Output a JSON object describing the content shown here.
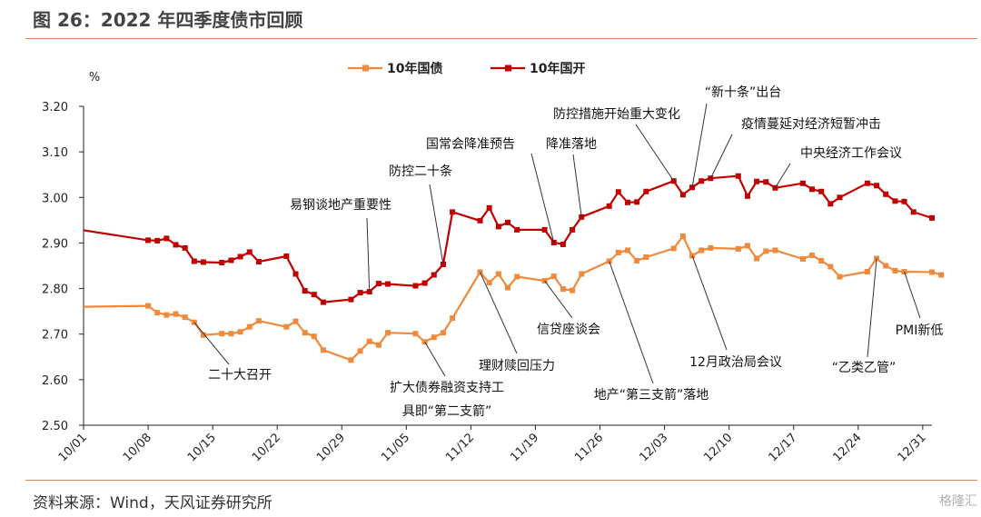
{
  "header": {
    "title": "图 26：2022 年四季度债市回顾"
  },
  "footer": {
    "source": "资料来源：Wind，天风证券研究所",
    "brand": "格隆汇"
  },
  "colors": {
    "gov": "#ef8a3d",
    "cdb": "#c00000",
    "accent_line": "#d08a5c"
  },
  "chart_data": {
    "type": "line",
    "unit": "%",
    "x_ticks": [
      "10/01",
      "10/08",
      "10/15",
      "10/22",
      "10/29",
      "11/05",
      "11/12",
      "11/19",
      "11/26",
      "12/03",
      "12/10",
      "12/17",
      "12/24",
      "12/31"
    ],
    "ylim": [
      2.5,
      3.2
    ],
    "y_ticks": [
      "2.50",
      "2.60",
      "2.70",
      "2.80",
      "2.90",
      "3.00",
      "3.10",
      "3.20"
    ],
    "grid": false,
    "legend_position": "top",
    "series": [
      {
        "name": "10年国债",
        "color": "#ef8a3d",
        "points": [
          [
            0,
            2.76
          ],
          [
            7,
            2.762
          ],
          [
            8,
            2.747
          ],
          [
            9,
            2.742
          ],
          [
            10,
            2.744
          ],
          [
            11,
            2.737
          ],
          [
            12,
            2.726
          ],
          [
            13,
            2.698
          ],
          [
            15,
            2.701
          ],
          [
            16,
            2.701
          ],
          [
            17,
            2.705
          ],
          [
            18,
            2.716
          ],
          [
            19,
            2.729
          ],
          [
            22,
            2.716
          ],
          [
            23,
            2.728
          ],
          [
            24,
            2.703
          ],
          [
            25,
            2.695
          ],
          [
            26,
            2.665
          ],
          [
            29,
            2.643
          ],
          [
            30,
            2.663
          ],
          [
            31,
            2.684
          ],
          [
            32,
            2.676
          ],
          [
            33,
            2.703
          ],
          [
            36,
            2.701
          ],
          [
            37,
            2.683
          ],
          [
            38,
            2.693
          ],
          [
            39,
            2.703
          ],
          [
            40,
            2.735
          ],
          [
            43,
            2.836
          ],
          [
            44,
            2.813
          ],
          [
            45,
            2.832
          ],
          [
            46,
            2.802
          ],
          [
            47,
            2.826
          ],
          [
            50,
            2.817
          ],
          [
            51,
            2.827
          ],
          [
            52,
            2.799
          ],
          [
            53,
            2.796
          ],
          [
            54,
            2.832
          ],
          [
            57,
            2.86
          ],
          [
            58,
            2.879
          ],
          [
            59,
            2.884
          ],
          [
            60,
            2.861
          ],
          [
            61,
            2.869
          ],
          [
            64,
            2.888
          ],
          [
            65,
            2.915
          ],
          [
            66,
            2.872
          ],
          [
            67,
            2.884
          ],
          [
            68,
            2.889
          ],
          [
            71,
            2.887
          ],
          [
            72,
            2.894
          ],
          [
            73,
            2.866
          ],
          [
            74,
            2.882
          ],
          [
            75,
            2.884
          ],
          [
            78,
            2.865
          ],
          [
            79,
            2.873
          ],
          [
            80,
            2.861
          ],
          [
            81,
            2.848
          ],
          [
            82,
            2.826
          ],
          [
            85,
            2.837
          ],
          [
            86,
            2.866
          ],
          [
            87,
            2.85
          ],
          [
            88,
            2.839
          ],
          [
            89,
            2.837
          ],
          [
            92,
            2.836
          ],
          [
            93,
            2.83
          ]
        ]
      },
      {
        "name": "10年国开",
        "color": "#c00000",
        "points": [
          [
            0,
            2.928
          ],
          [
            7,
            2.906
          ],
          [
            8,
            2.905
          ],
          [
            9,
            2.91
          ],
          [
            10,
            2.896
          ],
          [
            11,
            2.889
          ],
          [
            12,
            2.86
          ],
          [
            13,
            2.858
          ],
          [
            15,
            2.857
          ],
          [
            16,
            2.862
          ],
          [
            17,
            2.87
          ],
          [
            18,
            2.88
          ],
          [
            19,
            2.859
          ],
          [
            22,
            2.871
          ],
          [
            23,
            2.832
          ],
          [
            24,
            2.795
          ],
          [
            25,
            2.787
          ],
          [
            26,
            2.77
          ],
          [
            29,
            2.776
          ],
          [
            30,
            2.791
          ],
          [
            31,
            2.793
          ],
          [
            32,
            2.811
          ],
          [
            33,
            2.81
          ],
          [
            36,
            2.806
          ],
          [
            37,
            2.812
          ],
          [
            38,
            2.83
          ],
          [
            39,
            2.853
          ],
          [
            40,
            2.968
          ],
          [
            43,
            2.949
          ],
          [
            44,
            2.977
          ],
          [
            45,
            2.936
          ],
          [
            46,
            2.945
          ],
          [
            47,
            2.929
          ],
          [
            50,
            2.929
          ],
          [
            51,
            2.901
          ],
          [
            52,
            2.897
          ],
          [
            53,
            2.929
          ],
          [
            54,
            2.957
          ],
          [
            57,
            2.981
          ],
          [
            58,
            3.012
          ],
          [
            59,
            2.989
          ],
          [
            60,
            2.99
          ],
          [
            61,
            3.013
          ],
          [
            64,
            3.036
          ],
          [
            65,
            3.006
          ],
          [
            66,
            3.022
          ],
          [
            67,
            3.036
          ],
          [
            68,
            3.042
          ],
          [
            71,
            3.047
          ],
          [
            72,
            3.003
          ],
          [
            73,
            3.035
          ],
          [
            74,
            3.034
          ],
          [
            75,
            3.021
          ],
          [
            78,
            3.031
          ],
          [
            79,
            3.018
          ],
          [
            80,
            3.013
          ],
          [
            81,
            2.986
          ],
          [
            82,
            3.0
          ],
          [
            85,
            3.031
          ],
          [
            86,
            3.026
          ],
          [
            87,
            3.007
          ],
          [
            88,
            2.992
          ],
          [
            89,
            2.991
          ],
          [
            90,
            2.968
          ],
          [
            92,
            2.955
          ]
        ]
      }
    ],
    "annotations": [
      {
        "text": "易钢谈地产重要性",
        "target_series": 1,
        "target_x": 31
      },
      {
        "text": "防控二十条",
        "target_series": 1,
        "target_x": 39
      },
      {
        "text": "国常会降准预告",
        "target_series": 1,
        "target_x": 51
      },
      {
        "text": "降准落地",
        "target_series": 1,
        "target_x": 54
      },
      {
        "text": "防控措施开始重大变化",
        "target_series": 1,
        "target_x": 64
      },
      {
        "text": "“新十条”出台",
        "target_series": 1,
        "target_x": 66
      },
      {
        "text": "疫情蔓延对经济短暂冲击",
        "target_series": 1,
        "target_x": 68
      },
      {
        "text": "中央经济工作会议",
        "target_series": 1,
        "target_x": 75
      },
      {
        "text": "二十大召开",
        "target_series": 0,
        "target_x": 12
      },
      {
        "text": "扩大债券融资支持工",
        "text2": "具即“第二支箭”",
        "target_series": 0,
        "target_x": 37
      },
      {
        "text": "理财赎回压力",
        "target_series": 0,
        "target_x": 43
      },
      {
        "text": "信贷座谈会",
        "target_series": 0,
        "target_x": 50
      },
      {
        "text": "地产“第三支箭”落地",
        "target_series": 0,
        "target_x": 57
      },
      {
        "text": "12月政治局会议",
        "target_series": 0,
        "target_x": 66
      },
      {
        "text": "“乙类乙管”",
        "target_series": 0,
        "target_x": 86
      },
      {
        "text": "PMI新低",
        "target_series": 0,
        "target_x": 89
      }
    ]
  }
}
